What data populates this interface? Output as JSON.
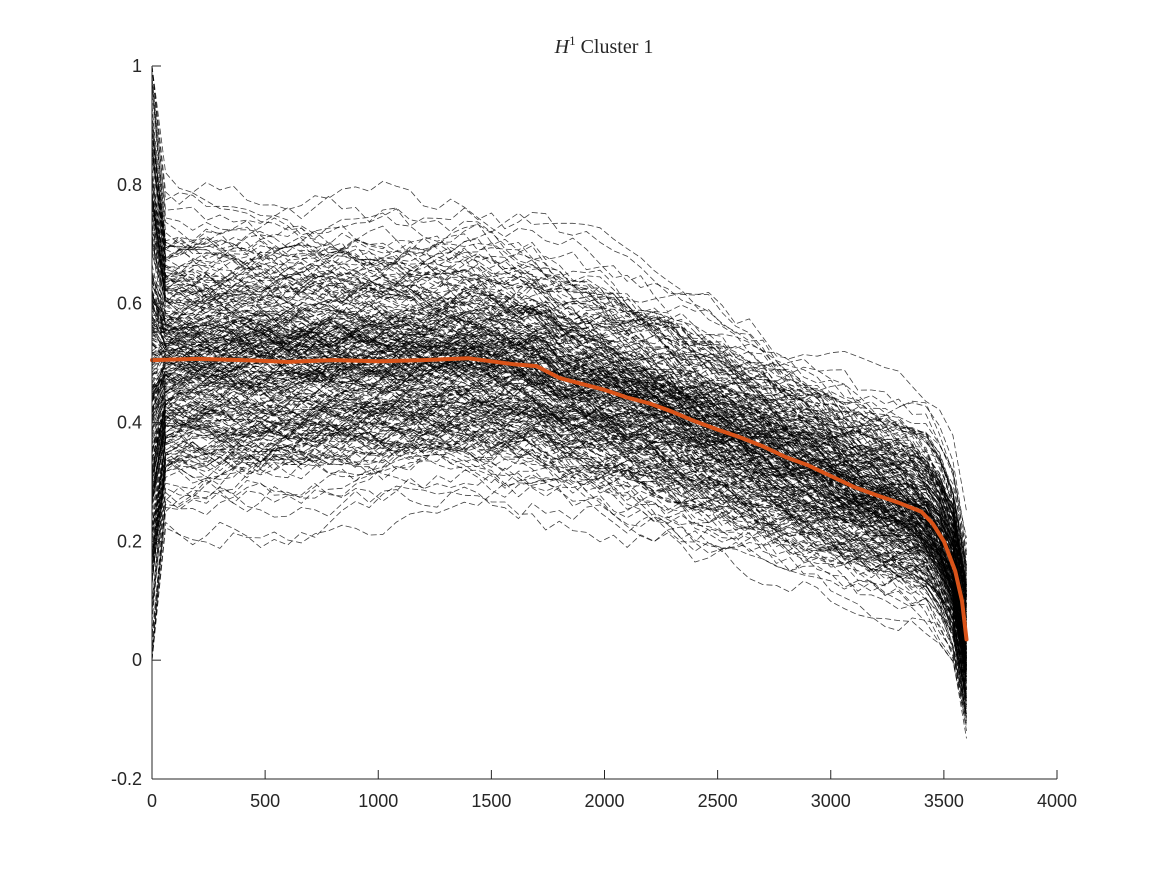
{
  "chart_data": {
    "type": "line",
    "title": "Cluster 1",
    "title_math": {
      "symbol": "H",
      "superscript": "1"
    },
    "xlabel": "",
    "ylabel": "",
    "xlim": [
      0,
      4000
    ],
    "ylim": [
      -0.2,
      1
    ],
    "x_ticks": [
      0,
      500,
      1000,
      1500,
      2000,
      2500,
      3000,
      3500,
      4000
    ],
    "y_ticks": [
      -0.2,
      0,
      0.2,
      0.4,
      0.6,
      0.8,
      1
    ],
    "x_tick_labels": [
      "0",
      "500",
      "1000",
      "1500",
      "2000",
      "2500",
      "3000",
      "3500",
      "4000"
    ],
    "y_tick_labels": [
      "-0.2",
      "0",
      "0.2",
      "0.4",
      "0.6",
      "0.8",
      "1"
    ],
    "grid": false,
    "legend": "none",
    "background_series": {
      "description_style": "many dashed black sample trajectories",
      "color": "#000000",
      "dashed": true,
      "count_estimate": 300,
      "x_range": [
        0,
        3600
      ],
      "typical_center": 0.5,
      "typical_spread": 0.15
    },
    "series": [
      {
        "color": "#D95319",
        "style": "solid-thick",
        "x": [
          0,
          200,
          400,
          600,
          800,
          1000,
          1200,
          1400,
          1600,
          1700,
          1800,
          1900,
          2000,
          2100,
          2200,
          2300,
          2400,
          2500,
          2600,
          2700,
          2800,
          2900,
          3000,
          3100,
          3200,
          3300,
          3400,
          3450,
          3500,
          3550,
          3580,
          3600
        ],
        "values": [
          0.505,
          0.507,
          0.505,
          0.502,
          0.505,
          0.503,
          0.505,
          0.508,
          0.498,
          0.495,
          0.475,
          0.465,
          0.455,
          0.442,
          0.432,
          0.418,
          0.402,
          0.388,
          0.375,
          0.36,
          0.342,
          0.328,
          0.31,
          0.292,
          0.278,
          0.265,
          0.25,
          0.23,
          0.2,
          0.15,
          0.1,
          0.035
        ]
      }
    ]
  }
}
